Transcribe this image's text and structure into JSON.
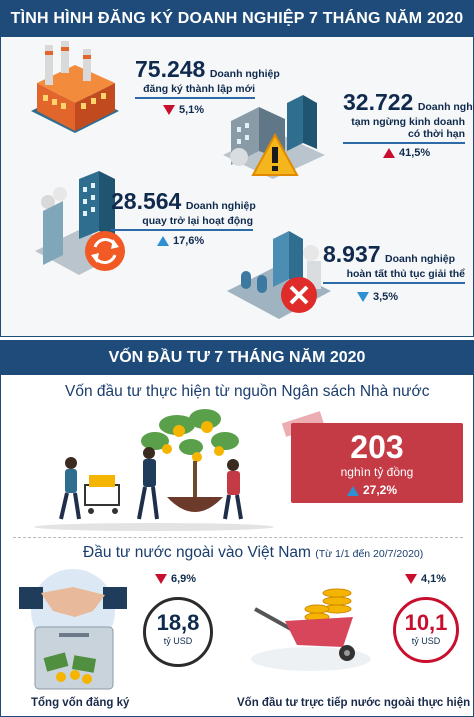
{
  "section1": {
    "title": "TÌNH HÌNH ĐĂNG KÝ DOANH NGHIỆP 7 THÁNG NĂM 2020",
    "stats": [
      {
        "value": "75.248",
        "label_a": "Doanh nghiệp",
        "label_b": "đăng ký thành lập mới",
        "label_c": "",
        "change": "5,1%",
        "direction": "down",
        "arrow_color": "#c8102e"
      },
      {
        "value": "32.722",
        "label_a": "Doanh nghiệp",
        "label_b": "tạm ngừng kinh doanh",
        "label_c": "có thời hạn",
        "change": "41,5%",
        "direction": "up",
        "arrow_color": "#c8102e"
      },
      {
        "value": "28.564",
        "label_a": "Doanh nghiệp",
        "label_b": "quay trở lại hoạt động",
        "label_c": "",
        "change": "17,6%",
        "direction": "up",
        "arrow_color": "#2f8fd3"
      },
      {
        "value": "8.937",
        "label_a": "Doanh nghiệp",
        "label_b": "hoàn tất thủ tục giải thể",
        "label_c": "",
        "change": "3,5%",
        "direction": "down",
        "arrow_color": "#2f8fd3"
      }
    ]
  },
  "section2": {
    "title": "VỐN ĐẦU TƯ 7 THÁNG NĂM 2020",
    "budget": {
      "heading": "Vốn đầu tư thực hiện từ nguồn Ngân sách Nhà nước",
      "value": "203",
      "unit": "nghìn tỷ đồng",
      "change": "27,2%",
      "direction": "up"
    },
    "fdi": {
      "heading": "Đầu tư nước ngoài vào Việt Nam",
      "period": "(Từ 1/1 đến 20/7/2020)",
      "registered": {
        "value": "18,8",
        "unit": "tỷ USD",
        "change": "6,9%",
        "direction": "down",
        "caption": "Tổng vốn đăng ký"
      },
      "disbursed": {
        "value": "10,1",
        "unit": "tỷ USD",
        "change": "4,1%",
        "direction": "down",
        "caption": "Vốn đầu tư trực tiếp nước ngoài thực hiện"
      }
    }
  },
  "colors": {
    "navy": "#1e4b7a",
    "red": "#c8102e",
    "blue_arrow": "#2f8fd3",
    "box_red": "#c43a45"
  }
}
